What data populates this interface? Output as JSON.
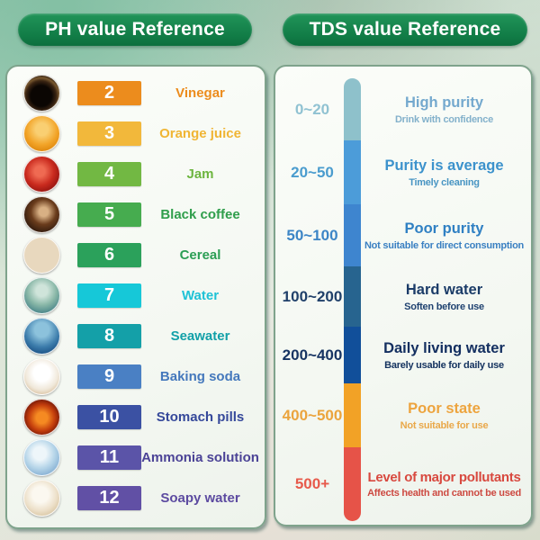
{
  "header": {
    "ph_title": "PH value Reference",
    "tds_title": "TDS value Reference"
  },
  "ph_panel": {
    "rows": [
      {
        "ph": "2",
        "label": "Vinegar",
        "badge_color": "#ec8c1d",
        "label_color": "#ec8c1d",
        "photo": "vinegar"
      },
      {
        "ph": "3",
        "label": "Orange juice",
        "badge_color": "#f2b83b",
        "label_color": "#f0b534",
        "photo": "orange-juice"
      },
      {
        "ph": "4",
        "label": "Jam",
        "badge_color": "#72b843",
        "label_color": "#6db53f",
        "photo": "jam"
      },
      {
        "ph": "5",
        "label": "Black coffee",
        "badge_color": "#46ac4f",
        "label_color": "#2f9e4b",
        "photo": "black-coffee"
      },
      {
        "ph": "6",
        "label": "Cereal",
        "badge_color": "#2ba15b",
        "label_color": "#2b9e54",
        "photo": "cereal"
      },
      {
        "ph": "7",
        "label": "Water",
        "badge_color": "#16c8d8",
        "label_color": "#1fc2d6",
        "photo": "water"
      },
      {
        "ph": "8",
        "label": "Seawater",
        "badge_color": "#14a0a8",
        "label_color": "#12a0a8",
        "photo": "seawater"
      },
      {
        "ph": "9",
        "label": "Baking soda",
        "badge_color": "#4a80c4",
        "label_color": "#4478bc",
        "photo": "baking-soda"
      },
      {
        "ph": "10",
        "label": "Stomach pills",
        "badge_color": "#3b51a3",
        "label_color": "#35489a",
        "photo": "stomach-pills"
      },
      {
        "ph": "11",
        "label": "Ammonia solution",
        "badge_color": "#5b54a8",
        "label_color": "#4b4396",
        "photo": "ammonia-solution"
      },
      {
        "ph": "12",
        "label": "Soapy water",
        "badge_color": "#6150a5",
        "label_color": "#5c4aa0",
        "photo": "soapy-water"
      }
    ]
  },
  "tds_panel": {
    "rows": [
      {
        "range": "0~20",
        "bar_color": "#8ec1cb",
        "range_color": "#90c2d2",
        "title": "High purity",
        "title_color": "#74a9ce",
        "subtitle": "Drink with confidence",
        "subtitle_color": "#83b1cb"
      },
      {
        "range": "20~50",
        "bar_color": "#4c9cd9",
        "range_color": "#4a9cce",
        "title": "Purity is average",
        "title_color": "#3c92cc",
        "subtitle": "Timely cleaning",
        "subtitle_color": "#4995c3"
      },
      {
        "range": "50~100",
        "bar_color": "#3e85cf",
        "range_color": "#3c85c6",
        "title": "Poor purity",
        "title_color": "#2f80c3",
        "subtitle": "Not suitable for direct consumption",
        "subtitle_color": "#3a80c2"
      },
      {
        "range": "100~200",
        "bar_color": "#27648f",
        "range_color": "#20406a",
        "title": "Hard water",
        "title_color": "#1b3c68",
        "subtitle": "Soften before use",
        "subtitle_color": "#1f4270"
      },
      {
        "range": "200~400",
        "bar_color": "#114f9a",
        "range_color": "#173463",
        "title": "Daily living water",
        "title_color": "#132f60",
        "subtitle": "Barely usable for daily use",
        "subtitle_color": "#163460"
      },
      {
        "range": "400~500",
        "bar_color": "#f2a226",
        "range_color": "#eba43d",
        "title": "Poor state",
        "title_color": "#eda43e",
        "subtitle": "Not suitable for use",
        "subtitle_color": "#e9a84a"
      },
      {
        "range": "500+",
        "bar_color": "#e65348",
        "range_color": "#e75a4b",
        "title": "Level of major pollutants",
        "title_color": "#d8493f",
        "subtitle": "Affects health and cannot be used",
        "subtitle_color": "#cd4a42"
      }
    ]
  }
}
